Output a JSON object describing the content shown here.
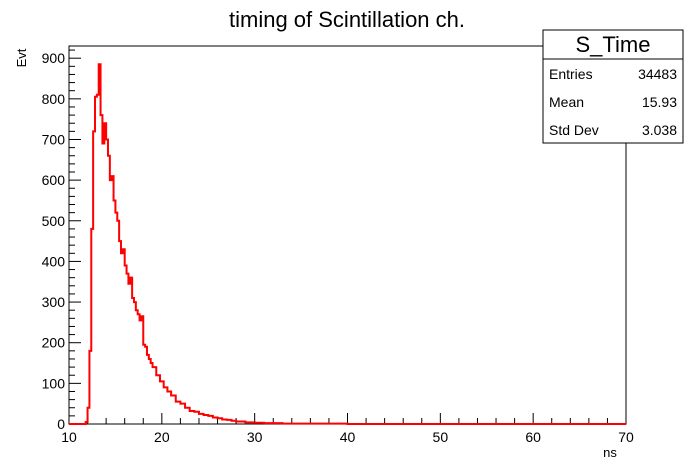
{
  "chart_data": {
    "type": "line",
    "title": "timing of Scintillation ch.",
    "xlabel": "ns",
    "ylabel": "Evt",
    "xlim": [
      10,
      70
    ],
    "ylim": [
      0,
      930
    ],
    "grid": false,
    "x_ticks": [
      10,
      20,
      30,
      40,
      50,
      60,
      70
    ],
    "y_ticks": [
      0,
      100,
      200,
      300,
      400,
      500,
      600,
      700,
      800,
      900
    ],
    "stats_box": {
      "name": "S_Time",
      "rows": [
        {
          "label": "Entries",
          "value": "34483"
        },
        {
          "label": "Mean",
          "value": "15.93"
        },
        {
          "label": "Std Dev",
          "value": "3.038"
        }
      ]
    },
    "series": [
      {
        "color": "#ff0000",
        "x": [
          11.8,
          12.0,
          12.2,
          12.4,
          12.6,
          12.8,
          13.0,
          13.2,
          13.4,
          13.6,
          13.8,
          14.0,
          14.2,
          14.4,
          14.6,
          14.8,
          15.0,
          15.2,
          15.4,
          15.6,
          15.8,
          16.0,
          16.2,
          16.4,
          16.6,
          16.8,
          17.0,
          17.2,
          17.4,
          17.6,
          17.8,
          18.0,
          18.2,
          18.4,
          18.6,
          18.8,
          19.0,
          19.4,
          19.8,
          20.2,
          20.6,
          21.0,
          21.5,
          22.0,
          22.5,
          23.0,
          23.5,
          24.0,
          24.5,
          25.0,
          25.5,
          26.0,
          26.5,
          27.0,
          27.5,
          28.0,
          29.0,
          30.0,
          31.0,
          32.0,
          33.0,
          35.0,
          40.0,
          50.0,
          60.0,
          70.0
        ],
        "y": [
          5,
          40,
          180,
          480,
          720,
          805,
          810,
          885,
          760,
          690,
          740,
          700,
          660,
          600,
          610,
          550,
          520,
          500,
          450,
          420,
          430,
          390,
          370,
          345,
          360,
          310,
          300,
          280,
          270,
          255,
          265,
          195,
          190,
          170,
          160,
          150,
          140,
          120,
          105,
          90,
          80,
          70,
          55,
          50,
          40,
          32,
          30,
          25,
          22,
          20,
          16,
          14,
          11,
          10,
          8,
          6,
          4,
          3,
          2,
          2,
          1,
          1,
          0,
          0,
          0,
          0
        ]
      }
    ]
  }
}
